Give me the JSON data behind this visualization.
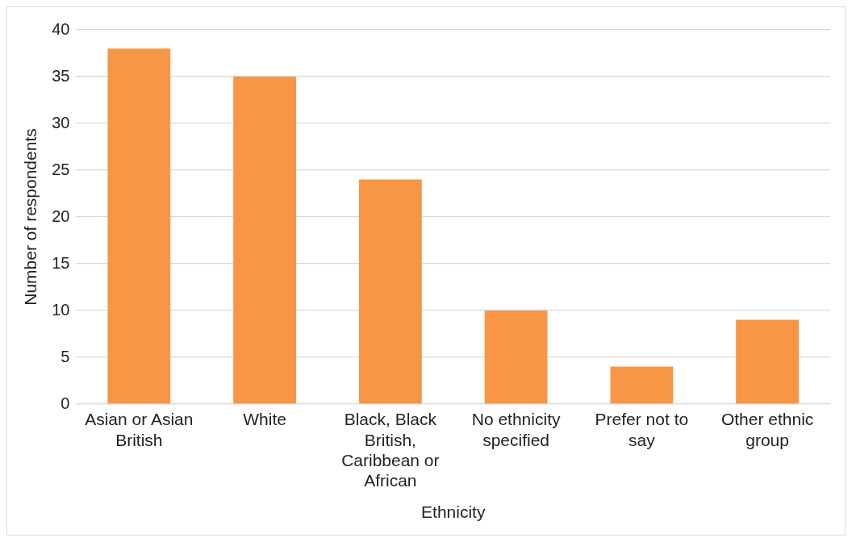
{
  "chart_data": {
    "type": "bar",
    "xlabel": "Ethnicity",
    "ylabel": "Number of respondents",
    "categories": [
      "Asian or Asian British",
      "White",
      "Black, Black British, Caribbean or African",
      "No ethnicity specified",
      "Prefer not to say",
      "Other ethnic group"
    ],
    "values": [
      38,
      35,
      24,
      10,
      4,
      9
    ],
    "color": "#f79646",
    "ylim": [
      0,
      40
    ],
    "yticks": [
      0,
      5,
      10,
      15,
      20,
      25,
      30,
      35,
      40
    ],
    "grid": "y",
    "legend": false
  }
}
